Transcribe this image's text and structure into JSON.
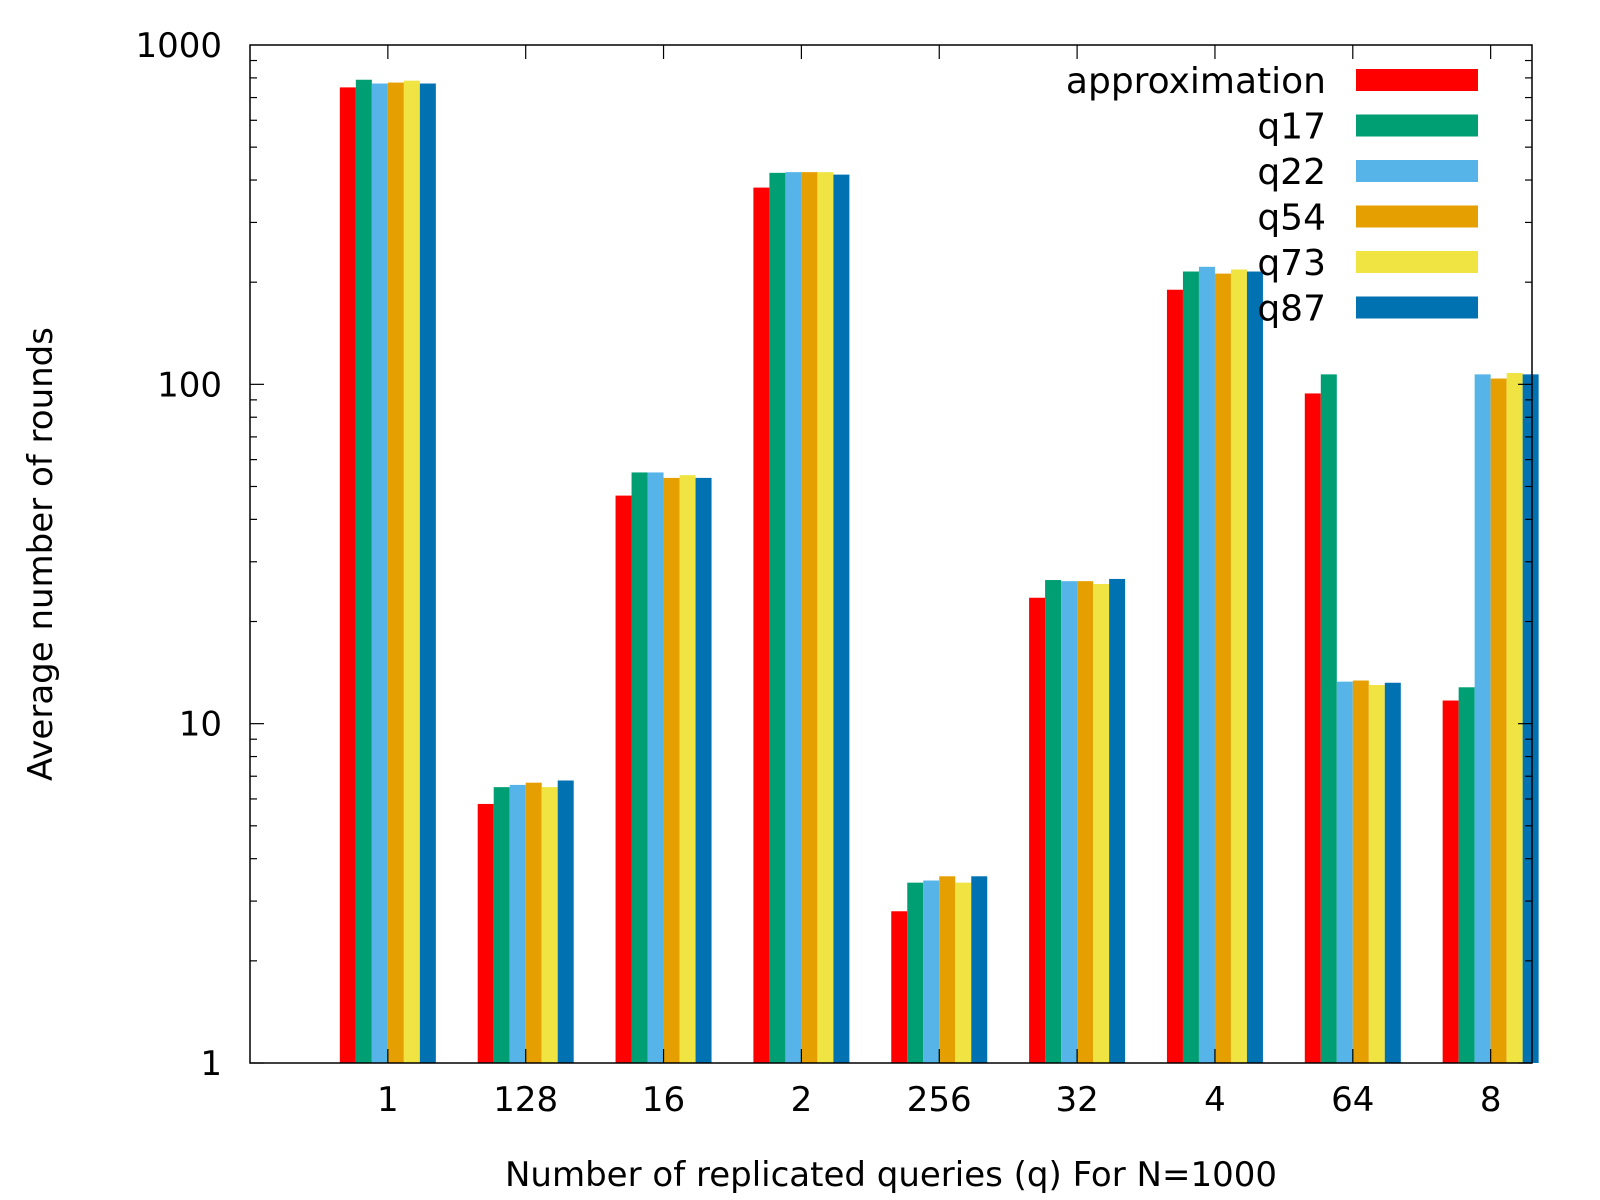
{
  "chart_data": {
    "type": "bar",
    "title": "",
    "xlabel": "Number of replicated queries (q) For N=1000",
    "ylabel": "Average number of rounds",
    "yscale": "log",
    "ylim": [
      1,
      1000
    ],
    "yticks": [
      "1",
      "10",
      "100",
      "1000"
    ],
    "grid": false,
    "legend_position": "top-right",
    "categories": [
      "1",
      "128",
      "16",
      "2",
      "256",
      "32",
      "4",
      "64",
      "8"
    ],
    "series": [
      {
        "name": "approximation",
        "color": "#ff0000",
        "values": [
          750,
          5.8,
          47,
          380,
          2.8,
          23.5,
          190,
          94,
          11.7
        ]
      },
      {
        "name": "q17",
        "color": "#009e73",
        "values": [
          790,
          6.5,
          55,
          420,
          3.4,
          26.5,
          215,
          107,
          12.8
        ]
      },
      {
        "name": "q22",
        "color": "#56b4e9",
        "values": [
          770,
          6.6,
          55,
          422,
          3.45,
          26.3,
          222,
          13.3,
          107
        ]
      },
      {
        "name": "q54",
        "color": "#e69f00",
        "values": [
          775,
          6.7,
          53,
          422,
          3.55,
          26.3,
          212,
          13.4,
          104
        ]
      },
      {
        "name": "q73",
        "color": "#f0e442",
        "values": [
          785,
          6.5,
          54,
          422,
          3.4,
          25.8,
          218,
          13.0,
          108
        ]
      },
      {
        "name": "q87",
        "color": "#0072b2",
        "values": [
          770,
          6.8,
          53,
          415,
          3.55,
          26.7,
          215,
          13.2,
          107
        ]
      }
    ]
  }
}
